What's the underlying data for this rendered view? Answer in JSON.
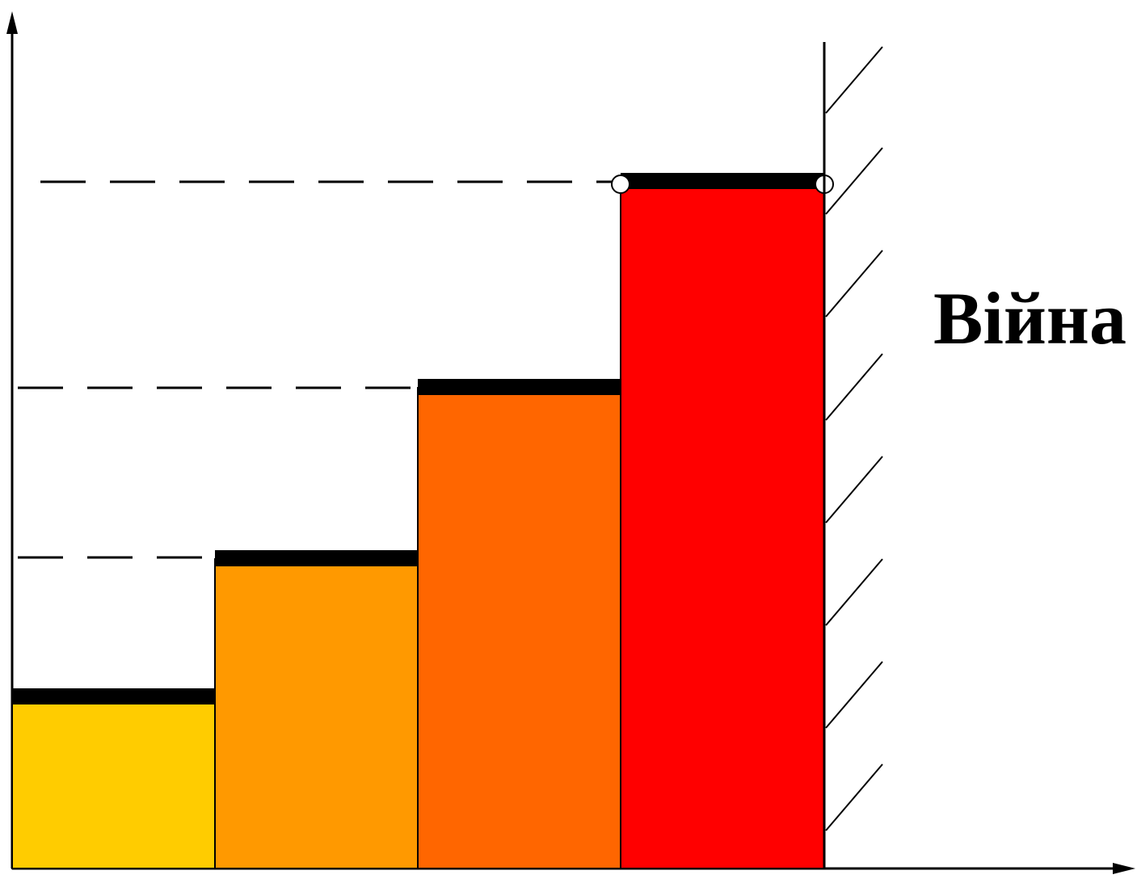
{
  "label": "Війна",
  "colors": {
    "step_1": "#FFCC00",
    "step_2": "#FF9900",
    "step_3": "#FF6600",
    "step_4": "#FF0000",
    "cap": "#000000",
    "axis": "#000000",
    "background": "#FFFFFF"
  },
  "steps": [
    {
      "level": 1,
      "color_key": "step_1"
    },
    {
      "level": 2,
      "color_key": "step_2"
    },
    {
      "level": 3,
      "color_key": "step_3"
    },
    {
      "level": 4,
      "color_key": "step_4"
    }
  ]
}
